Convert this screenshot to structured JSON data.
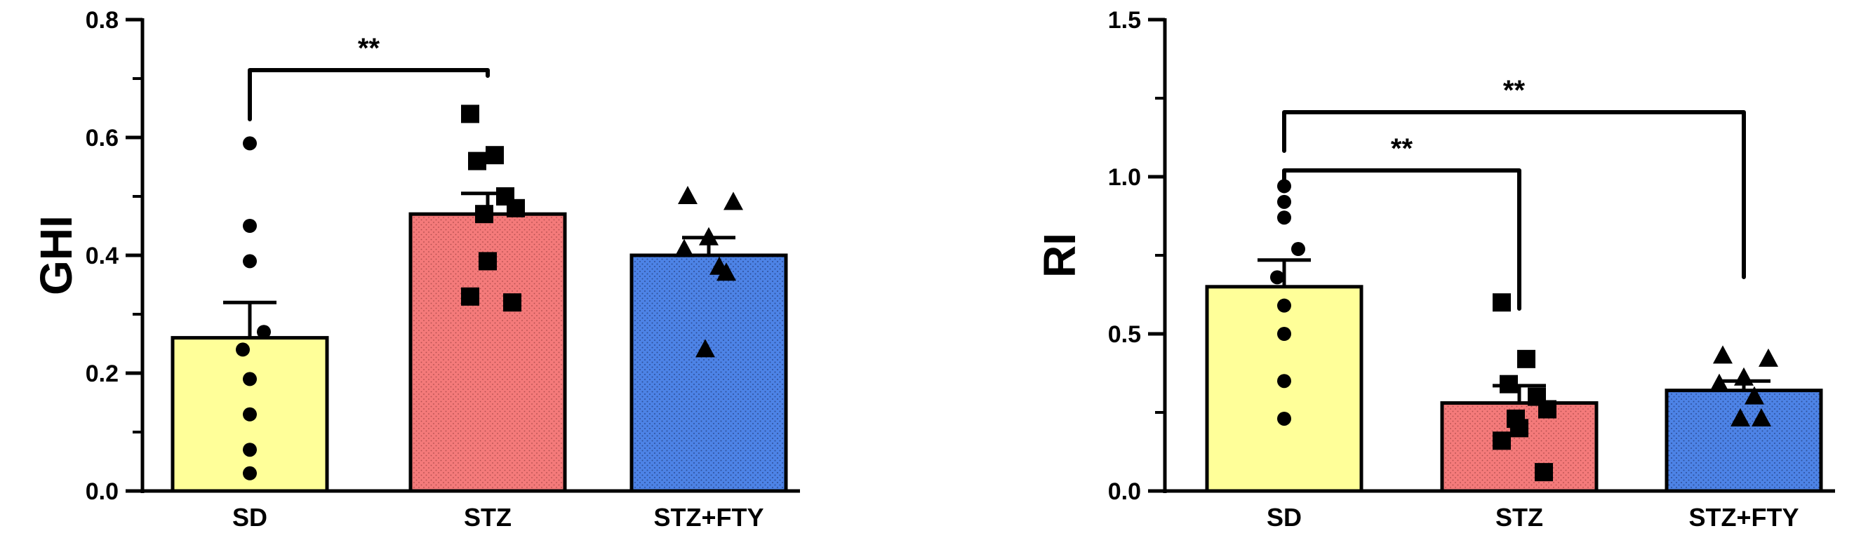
{
  "chart_data": [
    {
      "type": "bar",
      "ylabel": "GHI",
      "ylim": [
        0,
        0.8
      ],
      "yticks": [
        0.0,
        0.2,
        0.4,
        0.6,
        0.8
      ],
      "ytick_labels": [
        "0.0",
        "0.2",
        "0.4",
        "0.6",
        "0.8"
      ],
      "categories": [
        "SD",
        "STZ",
        "STZ+FTY"
      ],
      "values": [
        0.26,
        0.47,
        0.4
      ],
      "errors": [
        0.06,
        0.035,
        0.03
      ],
      "colors": [
        "#ffff99",
        "#f47a7a",
        "#4d83e6"
      ],
      "markers": [
        "circle",
        "square",
        "triangle"
      ],
      "points": [
        [
          0.59,
          0.45,
          0.39,
          0.27,
          0.24,
          0.19,
          0.13,
          0.07,
          0.03
        ],
        [
          0.64,
          0.57,
          0.56,
          0.5,
          0.48,
          0.47,
          0.39,
          0.33,
          0.32
        ],
        [
          0.5,
          0.49,
          0.43,
          0.41,
          0.38,
          0.37,
          0.24
        ]
      ],
      "significance": [
        {
          "from": 0,
          "to": 1,
          "label": "**"
        }
      ]
    },
    {
      "type": "bar",
      "ylabel": "RI",
      "ylim": [
        0,
        1.5
      ],
      "yticks": [
        0.0,
        0.5,
        1.0,
        1.5
      ],
      "ytick_labels": [
        "0.0",
        "0.5",
        "1.0",
        "1.5"
      ],
      "categories": [
        "SD",
        "STZ",
        "STZ+FTY"
      ],
      "values": [
        0.65,
        0.28,
        0.32
      ],
      "errors": [
        0.085,
        0.055,
        0.03
      ],
      "colors": [
        "#ffff99",
        "#f47a7a",
        "#4d83e6"
      ],
      "markers": [
        "circle",
        "square",
        "triangle"
      ],
      "points": [
        [
          0.97,
          0.92,
          0.87,
          0.77,
          0.68,
          0.59,
          0.5,
          0.35,
          0.23
        ],
        [
          0.6,
          0.42,
          0.34,
          0.3,
          0.26,
          0.23,
          0.2,
          0.16,
          0.06
        ],
        [
          0.43,
          0.42,
          0.36,
          0.34,
          0.3,
          0.23,
          0.23
        ]
      ],
      "significance": [
        {
          "from": 0,
          "to": 1,
          "label": "**"
        },
        {
          "from": 0,
          "to": 2,
          "label": "**"
        }
      ]
    }
  ]
}
